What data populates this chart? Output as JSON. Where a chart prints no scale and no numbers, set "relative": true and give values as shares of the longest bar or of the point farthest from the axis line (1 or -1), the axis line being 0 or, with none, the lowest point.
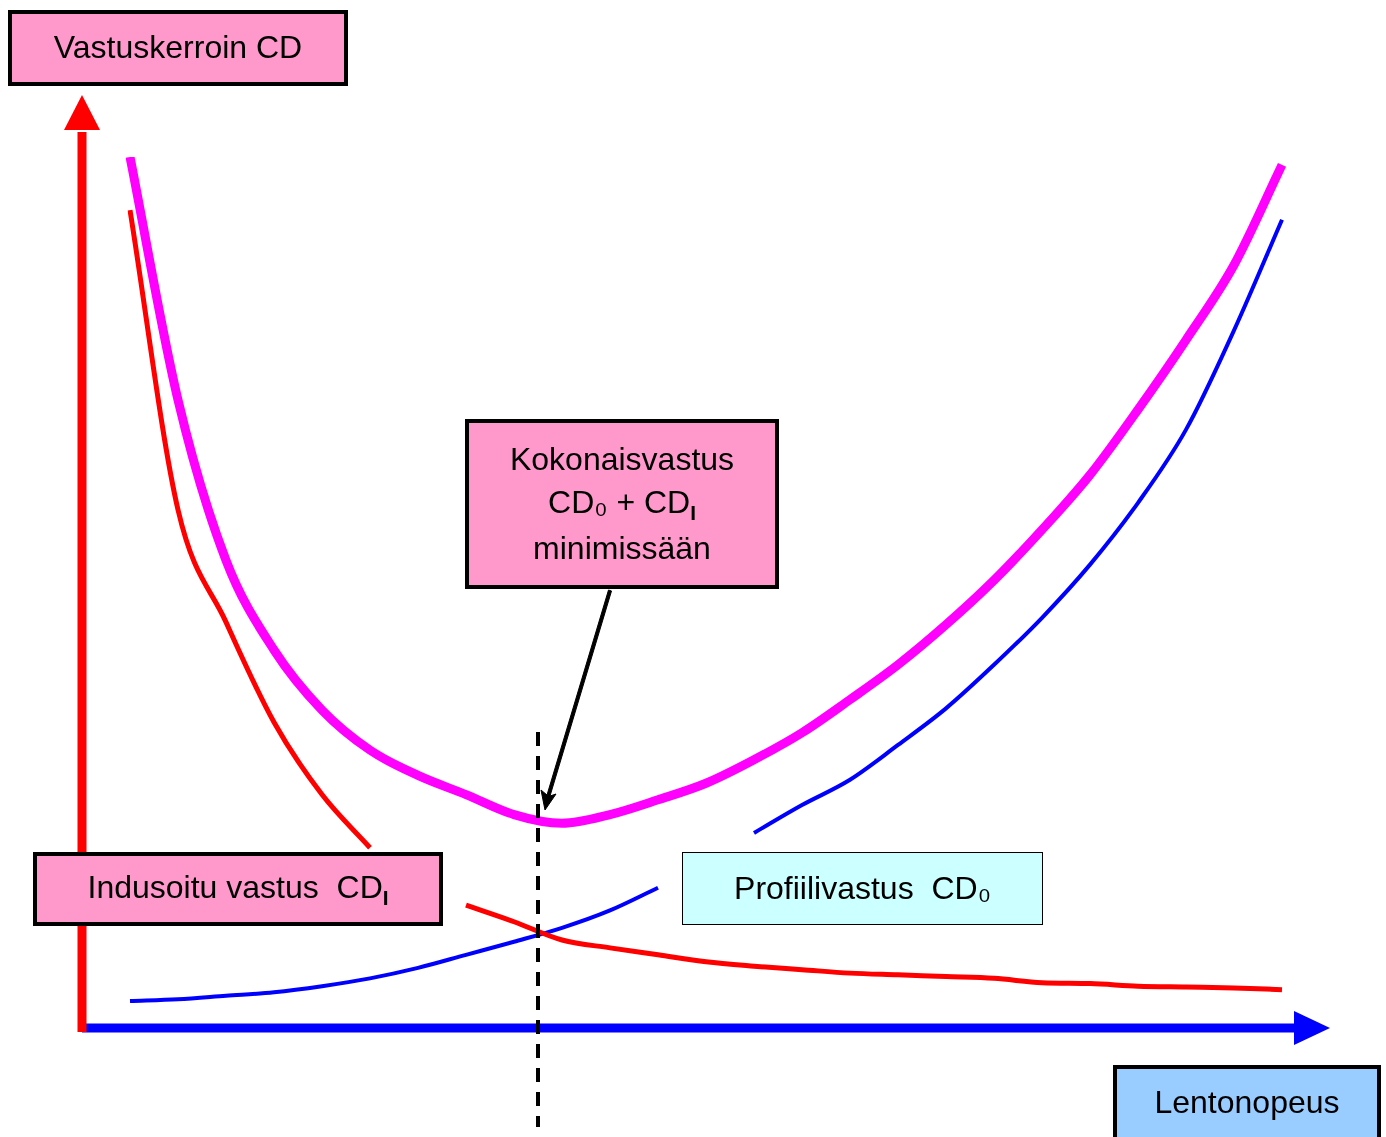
{
  "chart_data": {
    "type": "line",
    "relative": true,
    "ylabel": "Vastuskerroin CD",
    "xlabel": "Lentonopeus",
    "categories": [
      null,
      null,
      null,
      null,
      null,
      null,
      null,
      null,
      null,
      null,
      null,
      null,
      null,
      null,
      null,
      null,
      null,
      null,
      null,
      null,
      null,
      null,
      null,
      null,
      null
    ],
    "series": [
      {
        "name": "Indusoitu vastus  CD$_{I}$",
        "color": "#ff0000",
        "values": [
          0.939,
          0.595,
          0.466,
          0.351,
          0.268,
          0.207,
          null,
          0.141,
          0.122,
          0.101,
          0.092,
          0.084,
          0.076,
          0.071,
          0.067,
          0.063,
          0.061,
          0.059,
          0.057,
          0.052,
          0.051,
          0.048,
          0.047,
          0.046,
          0.044
        ]
      },
      {
        "name": "Profiilivastus  CD₀",
        "color": "#0000ff",
        "values": [
          0.031,
          0.033,
          0.037,
          0.041,
          0.048,
          0.057,
          0.069,
          0.084,
          0.099,
          0.115,
          0.135,
          0.161,
          null,
          0.224,
          0.256,
          0.285,
          0.325,
          0.367,
          0.417,
          0.471,
          0.532,
          0.603,
          0.687,
          0.801,
          0.928
        ]
      },
      {
        "color": "#ff00ff",
        "values": [
          1.0,
          0.721,
          0.537,
          0.434,
          0.365,
          0.319,
          0.29,
          0.268,
          0.245,
          0.235,
          0.245,
          0.262,
          0.281,
          0.308,
          0.339,
          0.377,
          0.417,
          0.463,
          0.514,
          0.572,
          0.635,
          0.71,
          0.79,
          0.876,
          0.991
        ]
      }
    ],
    "annotations": [
      "Kokonaisvastus\nCD₀ + CD$_{I}$\nminimissään"
    ],
    "legend": false,
    "marker": "none",
    "line_style": "solid"
  }
}
